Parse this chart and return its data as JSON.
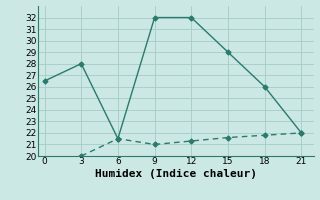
{
  "line1_x": [
    0,
    3,
    6,
    9,
    12,
    15,
    18,
    21
  ],
  "line1_y": [
    26.5,
    28,
    21.5,
    32,
    32,
    29,
    26,
    22
  ],
  "line2_x": [
    3,
    6,
    9,
    12,
    15,
    18,
    21
  ],
  "line2_y": [
    20,
    21.5,
    21,
    21.3,
    21.6,
    21.8,
    22
  ],
  "line_color": "#2a7a6e",
  "bg_color": "#cce8e4",
  "grid_color": "#aacfca",
  "xlabel": "Humidex (Indice chaleur)",
  "xlim": [
    -0.5,
    22
  ],
  "ylim": [
    20,
    33
  ],
  "xticks": [
    0,
    3,
    6,
    9,
    12,
    15,
    18,
    21
  ],
  "yticks": [
    20,
    21,
    22,
    23,
    24,
    25,
    26,
    27,
    28,
    29,
    30,
    31,
    32
  ],
  "marker": "D",
  "markersize": 2.5,
  "linewidth1": 1.0,
  "linewidth2": 1.0,
  "xlabel_fontsize": 8
}
